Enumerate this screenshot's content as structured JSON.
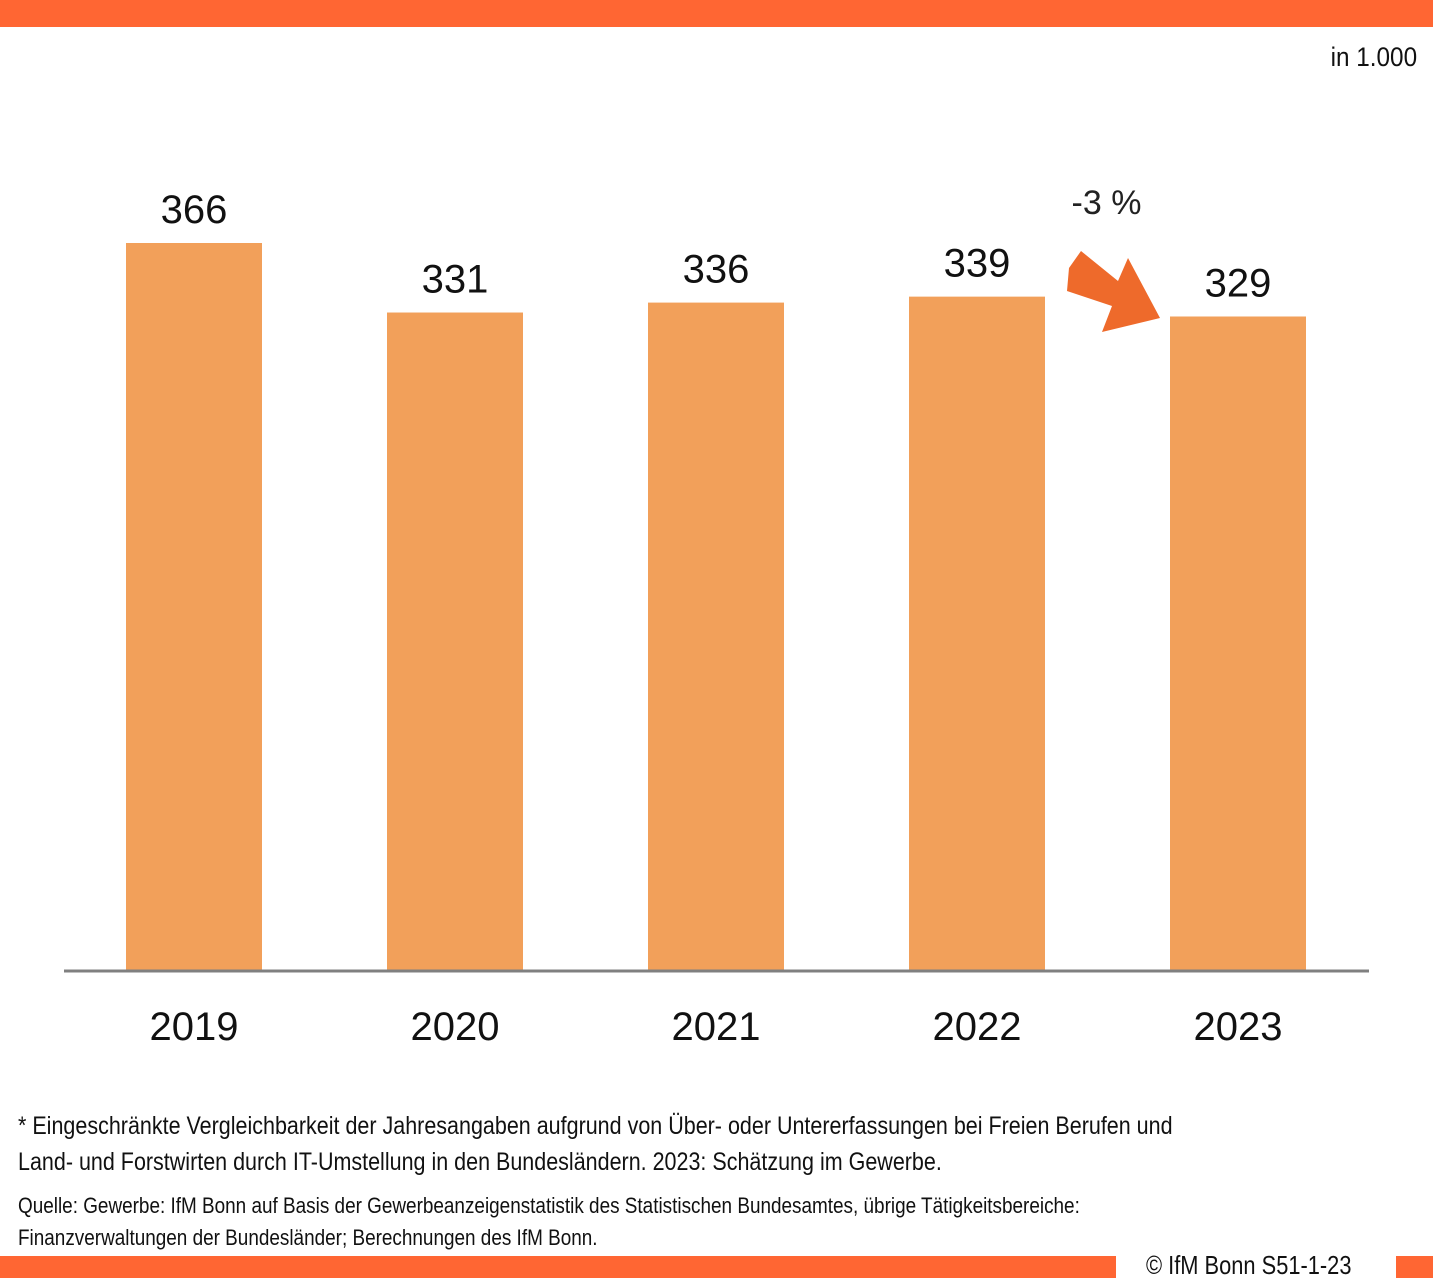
{
  "unit_label": "in 1.000",
  "colors": {
    "accent": "#FF6633",
    "bar": "#F2A05A",
    "arrow": "#EE6A2B",
    "axis": "#808080"
  },
  "chart_data": {
    "type": "bar",
    "categories": [
      "2019",
      "2020",
      "2021",
      "2022",
      "2023"
    ],
    "values": [
      366,
      331,
      336,
      339,
      329
    ],
    "data_labels": [
      "366",
      "331",
      "336",
      "339",
      "329"
    ],
    "ylim": [
      0,
      366
    ],
    "grid": false,
    "annotation": {
      "text": "-3 %",
      "from": "2022",
      "to": "2023"
    }
  },
  "footnote": "* Eingeschränkte Vergleichbarkeit der Jahresangaben aufgrund von Über- oder Untererfassungen bei Freien Berufen und Land- und Forstwirten  durch IT-Umstellung in den Bundesländern. 2023: Schätzung im Gewerbe.",
  "source": "Quelle:  Gewerbe: IfM Bonn auf Basis der Gewerbeanzeigenstatistik des Statistischen Bundesamtes, übrige Tätigkeitsbereiche: Finanzverwaltungen der Bundesländer;  Berechnungen des IfM Bonn.",
  "copyright": "© IfM  Bonn S51-1-23"
}
